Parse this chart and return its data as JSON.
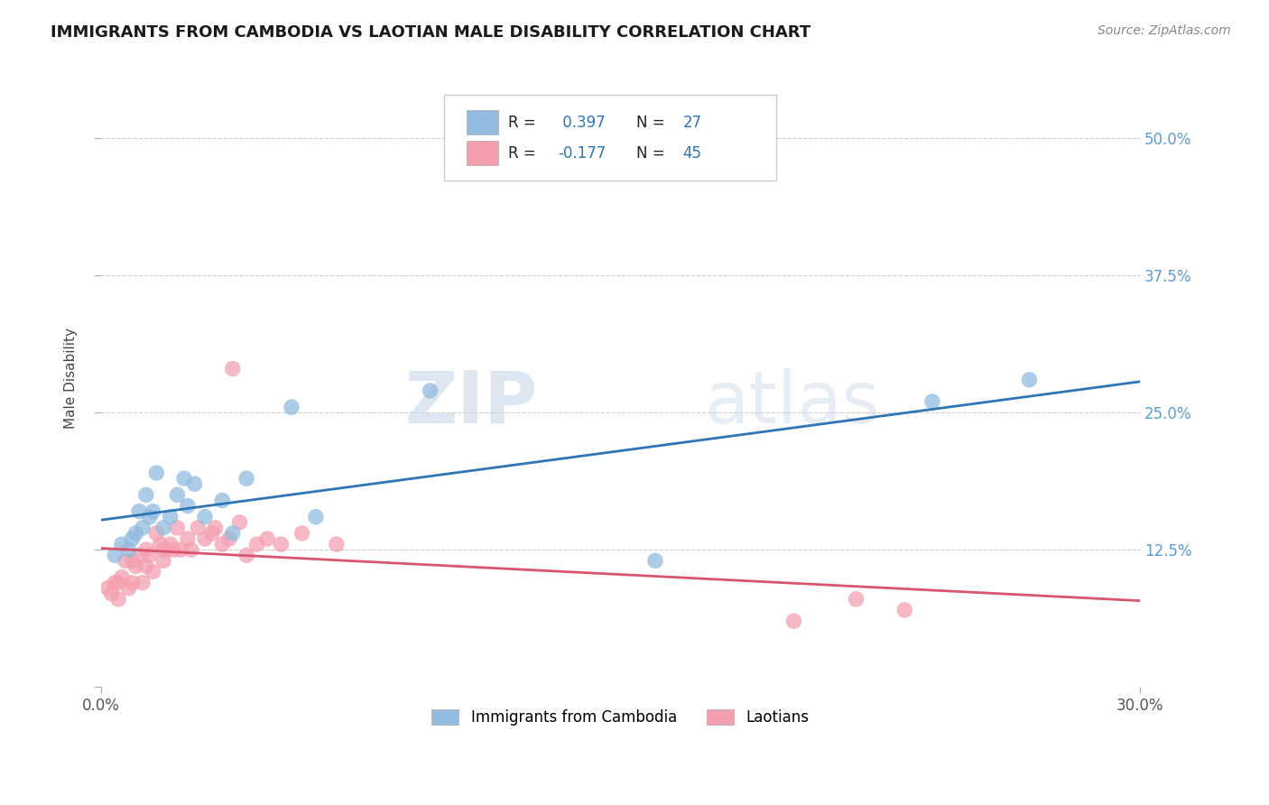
{
  "title": "IMMIGRANTS FROM CAMBODIA VS LAOTIAN MALE DISABILITY CORRELATION CHART",
  "source": "Source: ZipAtlas.com",
  "ylabel": "Male Disability",
  "x_min": 0.0,
  "x_max": 0.3,
  "y_min": 0.0,
  "y_max": 0.5625,
  "x_ticks": [
    0.0,
    0.3
  ],
  "x_tick_labels": [
    "0.0%",
    "30.0%"
  ],
  "y_ticks": [
    0.0,
    0.125,
    0.25,
    0.375,
    0.5
  ],
  "y_tick_labels": [
    "",
    "12.5%",
    "25.0%",
    "37.5%",
    "50.0%"
  ],
  "legend_blue_label": "Immigrants from Cambodia",
  "legend_pink_label": "Laotians",
  "R_blue": 0.397,
  "N_blue": 27,
  "R_pink": -0.177,
  "N_pink": 45,
  "blue_color": "#92bbdf",
  "pink_color": "#f4a0b0",
  "trendline_blue_color": "#2e75b6",
  "trendline_pink_color": "#d9546e",
  "watermark_zip": "ZIP",
  "watermark_atlas": "atlas",
  "blue_scatter_x": [
    0.004,
    0.006,
    0.008,
    0.009,
    0.01,
    0.011,
    0.012,
    0.013,
    0.014,
    0.015,
    0.016,
    0.018,
    0.02,
    0.022,
    0.024,
    0.025,
    0.027,
    0.03,
    0.035,
    0.038,
    0.042,
    0.055,
    0.062,
    0.095,
    0.16,
    0.24,
    0.268
  ],
  "blue_scatter_y": [
    0.12,
    0.13,
    0.125,
    0.135,
    0.14,
    0.16,
    0.145,
    0.175,
    0.155,
    0.16,
    0.195,
    0.145,
    0.155,
    0.175,
    0.19,
    0.165,
    0.185,
    0.155,
    0.17,
    0.14,
    0.19,
    0.255,
    0.155,
    0.27,
    0.115,
    0.26,
    0.28
  ],
  "pink_scatter_x": [
    0.002,
    0.003,
    0.004,
    0.005,
    0.005,
    0.006,
    0.007,
    0.008,
    0.009,
    0.009,
    0.01,
    0.011,
    0.012,
    0.013,
    0.013,
    0.014,
    0.015,
    0.016,
    0.017,
    0.018,
    0.018,
    0.019,
    0.02,
    0.021,
    0.022,
    0.023,
    0.025,
    0.026,
    0.028,
    0.03,
    0.032,
    0.033,
    0.035,
    0.037,
    0.038,
    0.04,
    0.042,
    0.045,
    0.048,
    0.052,
    0.058,
    0.068,
    0.2,
    0.218,
    0.232
  ],
  "pink_scatter_y": [
    0.09,
    0.085,
    0.095,
    0.08,
    0.095,
    0.1,
    0.115,
    0.09,
    0.095,
    0.115,
    0.11,
    0.12,
    0.095,
    0.125,
    0.11,
    0.12,
    0.105,
    0.14,
    0.13,
    0.125,
    0.115,
    0.125,
    0.13,
    0.125,
    0.145,
    0.125,
    0.135,
    0.125,
    0.145,
    0.135,
    0.14,
    0.145,
    0.13,
    0.135,
    0.29,
    0.15,
    0.12,
    0.13,
    0.135,
    0.13,
    0.14,
    0.13,
    0.06,
    0.08,
    0.07
  ]
}
